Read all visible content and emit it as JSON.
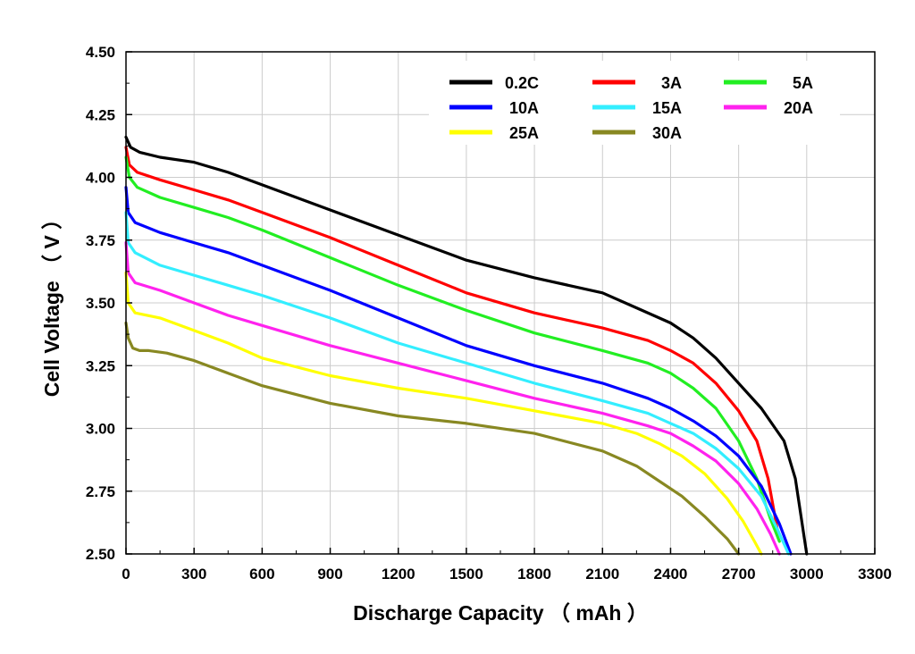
{
  "chart_data": {
    "type": "line",
    "xlabel": "Discharge Capacity （ mAh ）",
    "ylabel": "Cell Voltage （ V ）",
    "xlim": [
      0,
      3300
    ],
    "ylim": [
      2.5,
      4.5
    ],
    "xticks": [
      0,
      300,
      600,
      900,
      1200,
      1500,
      1800,
      2100,
      2400,
      2700,
      3000,
      3300
    ],
    "xtick_labels": [
      "0",
      "300",
      "600",
      "900",
      "1200",
      "1500",
      "1800",
      "2100",
      "2400",
      "2700",
      "3000",
      "3300"
    ],
    "yticks": [
      2.5,
      2.75,
      3.0,
      3.25,
      3.5,
      3.75,
      4.0,
      4.25,
      4.5
    ],
    "ytick_labels": [
      "2.50",
      "2.75",
      "3.00",
      "3.25",
      "3.50",
      "3.75",
      "4.00",
      "4.25",
      "4.50"
    ],
    "grid": true,
    "legend_position": "top-right",
    "series": [
      {
        "name": "0.2C",
        "color": "#000000",
        "x": [
          0,
          20,
          60,
          150,
          300,
          450,
          600,
          900,
          1200,
          1500,
          1800,
          2100,
          2250,
          2400,
          2500,
          2600,
          2700,
          2800,
          2900,
          2950,
          3000
        ],
        "y": [
          4.16,
          4.12,
          4.1,
          4.08,
          4.06,
          4.02,
          3.97,
          3.87,
          3.77,
          3.67,
          3.6,
          3.54,
          3.48,
          3.42,
          3.36,
          3.28,
          3.18,
          3.08,
          2.95,
          2.8,
          2.5
        ]
      },
      {
        "name": "3A",
        "color": "#ff0000",
        "x": [
          0,
          15,
          50,
          150,
          300,
          450,
          600,
          900,
          1200,
          1500,
          1800,
          2100,
          2300,
          2400,
          2500,
          2600,
          2700,
          2780,
          2830,
          2870
        ],
        "y": [
          4.12,
          4.05,
          4.02,
          3.99,
          3.95,
          3.91,
          3.86,
          3.76,
          3.65,
          3.54,
          3.46,
          3.4,
          3.35,
          3.31,
          3.26,
          3.18,
          3.07,
          2.95,
          2.8,
          2.6
        ]
      },
      {
        "name": "5A",
        "color": "#22ee22",
        "x": [
          0,
          15,
          50,
          150,
          300,
          450,
          600,
          900,
          1200,
          1500,
          1800,
          2100,
          2300,
          2400,
          2500,
          2600,
          2700,
          2780,
          2840,
          2880
        ],
        "y": [
          4.08,
          4.0,
          3.96,
          3.92,
          3.88,
          3.84,
          3.79,
          3.68,
          3.57,
          3.47,
          3.38,
          3.31,
          3.26,
          3.22,
          3.16,
          3.08,
          2.95,
          2.8,
          2.64,
          2.55
        ]
      },
      {
        "name": "10A",
        "color": "#0000ff",
        "x": [
          0,
          10,
          40,
          150,
          300,
          450,
          600,
          900,
          1200,
          1500,
          1800,
          2100,
          2300,
          2400,
          2500,
          2600,
          2700,
          2800,
          2880,
          2930
        ],
        "y": [
          3.96,
          3.86,
          3.82,
          3.78,
          3.74,
          3.7,
          3.65,
          3.55,
          3.44,
          3.33,
          3.25,
          3.18,
          3.12,
          3.08,
          3.03,
          2.97,
          2.89,
          2.77,
          2.62,
          2.5
        ]
      },
      {
        "name": "15A",
        "color": "#33eeff",
        "x": [
          0,
          10,
          40,
          150,
          300,
          450,
          600,
          900,
          1200,
          1500,
          1800,
          2100,
          2300,
          2400,
          2500,
          2600,
          2700,
          2800,
          2870,
          2920
        ],
        "y": [
          3.86,
          3.74,
          3.7,
          3.65,
          3.61,
          3.57,
          3.53,
          3.44,
          3.34,
          3.26,
          3.18,
          3.11,
          3.06,
          3.02,
          2.98,
          2.92,
          2.84,
          2.73,
          2.6,
          2.5
        ]
      },
      {
        "name": "20A",
        "color": "#ff22ee",
        "x": [
          0,
          10,
          40,
          150,
          300,
          450,
          600,
          900,
          1200,
          1500,
          1800,
          2100,
          2300,
          2400,
          2500,
          2600,
          2700,
          2780,
          2840,
          2880
        ],
        "y": [
          3.74,
          3.62,
          3.58,
          3.55,
          3.5,
          3.45,
          3.41,
          3.33,
          3.26,
          3.19,
          3.12,
          3.06,
          3.01,
          2.98,
          2.93,
          2.87,
          2.78,
          2.68,
          2.58,
          2.5
        ]
      },
      {
        "name": "25A",
        "color": "#ffff00",
        "x": [
          0,
          10,
          40,
          150,
          300,
          450,
          600,
          900,
          1200,
          1500,
          1800,
          2100,
          2250,
          2350,
          2450,
          2550,
          2650,
          2720,
          2770,
          2800
        ],
        "y": [
          3.62,
          3.5,
          3.46,
          3.44,
          3.39,
          3.34,
          3.28,
          3.21,
          3.16,
          3.12,
          3.07,
          3.02,
          2.98,
          2.94,
          2.89,
          2.82,
          2.72,
          2.63,
          2.55,
          2.5
        ]
      },
      {
        "name": "30A",
        "color": "#888822",
        "x": [
          0,
          10,
          30,
          60,
          100,
          180,
          300,
          450,
          600,
          900,
          1200,
          1500,
          1800,
          2100,
          2250,
          2350,
          2450,
          2550,
          2650,
          2700
        ],
        "y": [
          3.42,
          3.36,
          3.32,
          3.31,
          3.31,
          3.3,
          3.27,
          3.22,
          3.17,
          3.1,
          3.05,
          3.02,
          2.98,
          2.91,
          2.85,
          2.79,
          2.73,
          2.65,
          2.56,
          2.5
        ]
      }
    ]
  }
}
